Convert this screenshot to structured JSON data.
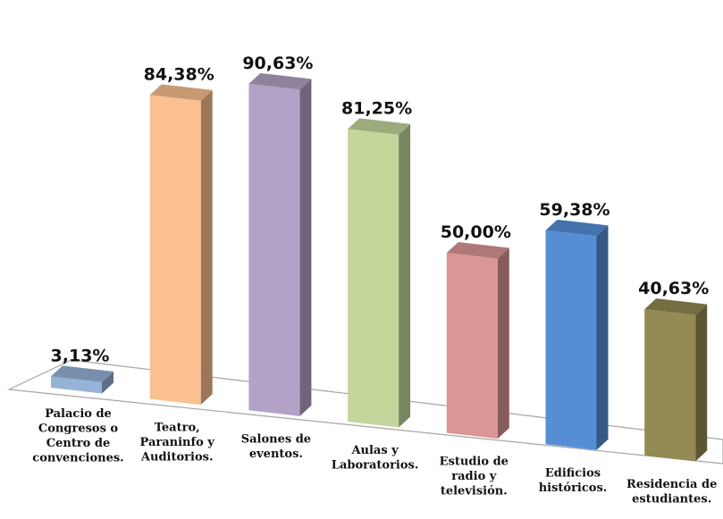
{
  "chart_data": {
    "type": "bar",
    "title": "",
    "xlabel": "",
    "ylabel": "",
    "ylim": [
      0,
      100
    ],
    "grid": false,
    "legend": "none",
    "categories": [
      [
        "Palacio de",
        "Congresos o",
        "Centro de",
        "convenciones."
      ],
      [
        "Teatro,",
        "Paraninfo y",
        "Auditorios."
      ],
      [
        "Salones de",
        "eventos."
      ],
      [
        "Aulas y",
        "Laboratorios."
      ],
      [
        "Estudio de",
        "radio y",
        "televisión."
      ],
      [
        "Edificios",
        "históricos."
      ],
      [
        "Residencia de",
        "estudiantes."
      ]
    ],
    "values": [
      3.13,
      84.38,
      90.63,
      81.25,
      50.0,
      59.38,
      40.63
    ],
    "data_labels": [
      "3,13%",
      "84,38%",
      "90,63%",
      "81,25%",
      "50,00%",
      "59,38%",
      "40,63%"
    ],
    "colors": [
      "#95b3d7",
      "#fac090",
      "#b3a2c7",
      "#c3d69b",
      "#d99694",
      "#558ed5",
      "#948a54"
    ]
  }
}
